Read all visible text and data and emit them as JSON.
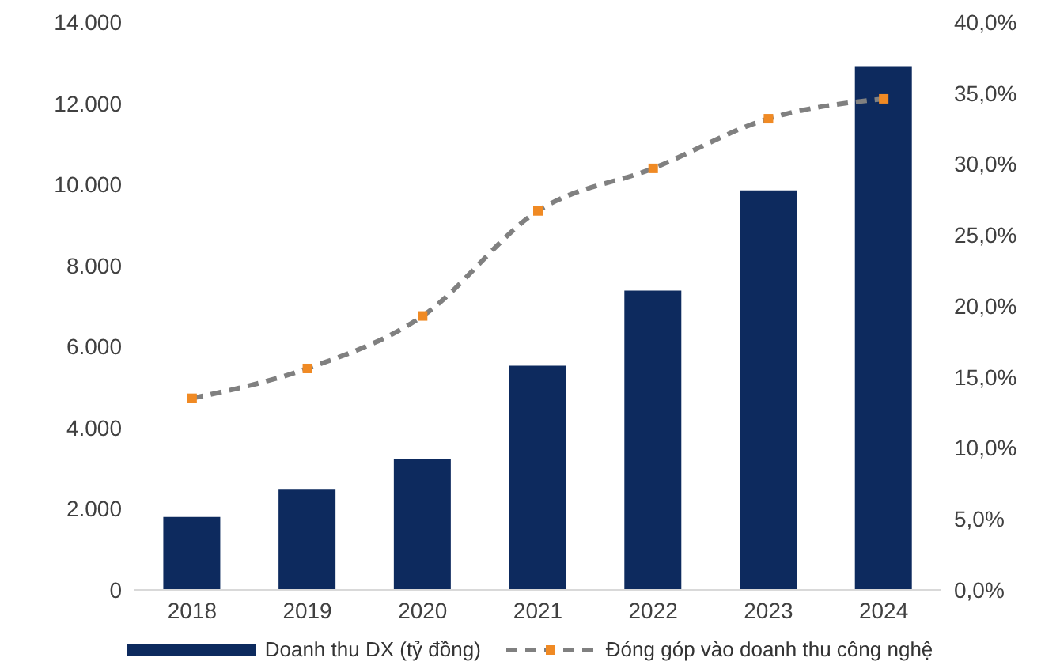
{
  "chart_data": {
    "type": "bar",
    "categories": [
      "2018",
      "2019",
      "2020",
      "2021",
      "2022",
      "2023",
      "2024"
    ],
    "series": [
      {
        "name": "Doanh thu DX (tỷ đồng)",
        "color": "#0d2a5e",
        "values": [
          1800,
          2470,
          3230,
          5530,
          7380,
          9850,
          12900
        ]
      },
      {
        "name": "Đóng góp vào doanh thu công nghệ",
        "type": "line",
        "axis": "y2",
        "color": "#808080",
        "colors": [
          "#f08a24",
          "#f08a24",
          "#f08a24",
          "#f08a24",
          "#f08a24",
          "#f08a24",
          "#f08a24"
        ],
        "line_style": "dashed",
        "marker": "square",
        "values": [
          13.5,
          15.6,
          19.3,
          26.7,
          29.7,
          33.2,
          34.6
        ]
      }
    ],
    "ylim": [
      0,
      14000
    ],
    "yticks": [
      {
        "value": 0,
        "label": "0"
      },
      {
        "value": 2000,
        "label": "2.000"
      },
      {
        "value": 4000,
        "label": "4.000"
      },
      {
        "value": 6000,
        "label": "6.000"
      },
      {
        "value": 8000,
        "label": "8.000"
      },
      {
        "value": 10000,
        "label": "10.000"
      },
      {
        "value": 12000,
        "label": "12.000"
      },
      {
        "value": 14000,
        "label": "14.000"
      }
    ],
    "y2lim": [
      0,
      40
    ],
    "y2ticks": [
      {
        "value": 0,
        "label": "0,0%"
      },
      {
        "value": 5,
        "label": "5,0%"
      },
      {
        "value": 10,
        "label": "10,0%"
      },
      {
        "value": 15,
        "label": "15,0%"
      },
      {
        "value": 20,
        "label": "20,0%"
      },
      {
        "value": 25,
        "label": "25,0%"
      },
      {
        "value": 30,
        "label": "30,0%"
      },
      {
        "value": 35,
        "label": "35,0%"
      },
      {
        "value": 40,
        "label": "40,0%"
      }
    ],
    "grid": false,
    "legend": "bottom"
  }
}
